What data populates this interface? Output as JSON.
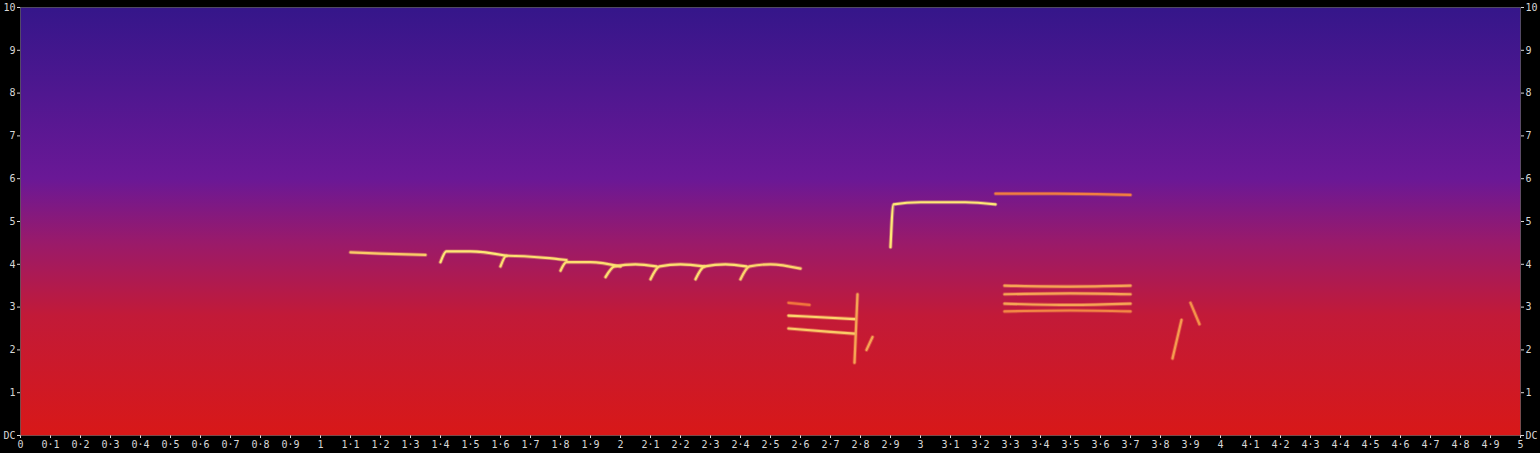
{
  "chart_data": {
    "type": "spectrogram",
    "xlim": [
      0,
      5
    ],
    "xticks": [
      0,
      {
        "value": 0.1,
        "label": "0·1"
      },
      {
        "value": 0.2,
        "label": "0·2"
      },
      {
        "value": 0.3,
        "label": "0·3"
      },
      {
        "value": 0.4,
        "label": "0·4"
      },
      {
        "value": 0.5,
        "label": "0·5"
      },
      {
        "value": 0.6,
        "label": "0·6"
      },
      {
        "value": 0.7,
        "label": "0·7"
      },
      {
        "value": 0.8,
        "label": "0·8"
      },
      {
        "value": 0.9,
        "label": "0·9"
      },
      1,
      {
        "value": 1.1,
        "label": "1·1"
      },
      {
        "value": 1.2,
        "label": "1·2"
      },
      {
        "value": 1.3,
        "label": "1·3"
      },
      {
        "value": 1.4,
        "label": "1·4"
      },
      {
        "value": 1.5,
        "label": "1·5"
      },
      {
        "value": 1.6,
        "label": "1·6"
      },
      {
        "value": 1.7,
        "label": "1·7"
      },
      {
        "value": 1.8,
        "label": "1·8"
      },
      {
        "value": 1.9,
        "label": "1·9"
      },
      2,
      {
        "value": 2.1,
        "label": "2·1"
      },
      {
        "value": 2.2,
        "label": "2·2"
      },
      {
        "value": 2.3,
        "label": "2·3"
      },
      {
        "value": 2.4,
        "label": "2·4"
      },
      {
        "value": 2.5,
        "label": "2·5"
      },
      {
        "value": 2.6,
        "label": "2·6"
      },
      {
        "value": 2.7,
        "label": "2·7"
      },
      {
        "value": 2.8,
        "label": "2·8"
      },
      {
        "value": 2.9,
        "label": "2·9"
      },
      3,
      {
        "value": 3.1,
        "label": "3·1"
      },
      {
        "value": 3.2,
        "label": "3·2"
      },
      {
        "value": 3.3,
        "label": "3·3"
      },
      {
        "value": 3.4,
        "label": "3·4"
      },
      {
        "value": 3.5,
        "label": "3·5"
      },
      {
        "value": 3.6,
        "label": "3·6"
      },
      {
        "value": 3.7,
        "label": "3·7"
      },
      {
        "value": 3.8,
        "label": "3·8"
      },
      {
        "value": 3.9,
        "label": "3·9"
      },
      4,
      {
        "value": 4.1,
        "label": "4·1"
      },
      {
        "value": 4.2,
        "label": "4·2"
      },
      {
        "value": 4.3,
        "label": "4·3"
      },
      {
        "value": 4.4,
        "label": "4·4"
      },
      {
        "value": 4.5,
        "label": "4·5"
      },
      {
        "value": 4.6,
        "label": "4·6"
      },
      {
        "value": 4.7,
        "label": "4·7"
      },
      {
        "value": 4.8,
        "label": "4·8"
      },
      {
        "value": 4.9,
        "label": "4·9"
      },
      5
    ],
    "ylim": [
      0,
      10
    ],
    "yticks": [
      {
        "value": 0,
        "label": "DC"
      },
      1,
      2,
      3,
      4,
      5,
      6,
      7,
      8,
      9,
      10
    ],
    "traces": [
      {
        "points": [
          [
            1.1,
            4.28
          ],
          [
            1.2,
            4.25
          ],
          [
            1.35,
            4.22
          ]
        ],
        "intensity": 0.8
      },
      {
        "points": [
          [
            1.4,
            4.05
          ],
          [
            1.42,
            4.3
          ],
          [
            1.5,
            4.3
          ],
          [
            1.62,
            4.2
          ]
        ],
        "intensity": 0.95
      },
      {
        "points": [
          [
            1.6,
            3.95
          ],
          [
            1.62,
            4.2
          ],
          [
            1.75,
            4.15
          ],
          [
            1.82,
            4.1
          ]
        ],
        "intensity": 0.9
      },
      {
        "points": [
          [
            1.8,
            3.85
          ],
          [
            1.82,
            4.05
          ],
          [
            1.9,
            4.05
          ],
          [
            2.0,
            3.95
          ]
        ],
        "intensity": 0.9
      },
      {
        "points": [
          [
            1.95,
            3.7
          ],
          [
            1.98,
            3.95
          ],
          [
            2.05,
            4.0
          ],
          [
            2.12,
            3.95
          ]
        ],
        "intensity": 0.9
      },
      {
        "points": [
          [
            2.1,
            3.65
          ],
          [
            2.13,
            3.95
          ],
          [
            2.2,
            4.0
          ],
          [
            2.28,
            3.95
          ]
        ],
        "intensity": 0.9
      },
      {
        "points": [
          [
            2.25,
            3.65
          ],
          [
            2.28,
            3.95
          ],
          [
            2.35,
            4.0
          ],
          [
            2.42,
            3.95
          ]
        ],
        "intensity": 0.9
      },
      {
        "points": [
          [
            2.4,
            3.65
          ],
          [
            2.43,
            3.95
          ],
          [
            2.5,
            4.0
          ],
          [
            2.6,
            3.9
          ]
        ],
        "intensity": 0.85
      },
      {
        "points": [
          [
            2.56,
            3.1
          ],
          [
            2.63,
            3.05
          ]
        ],
        "intensity": 0.35
      },
      {
        "points": [
          [
            2.56,
            2.8
          ],
          [
            2.62,
            2.78
          ],
          [
            2.78,
            2.72
          ]
        ],
        "intensity": 0.85
      },
      {
        "points": [
          [
            2.56,
            2.5
          ],
          [
            2.7,
            2.42
          ],
          [
            2.78,
            2.38
          ]
        ],
        "intensity": 0.8
      },
      {
        "points": [
          [
            2.78,
            1.7
          ],
          [
            2.79,
            3.3
          ]
        ],
        "intensity": 0.6
      },
      {
        "points": [
          [
            2.82,
            2.0
          ],
          [
            2.84,
            2.3
          ]
        ],
        "intensity": 0.6
      },
      {
        "points": [
          [
            2.9,
            4.4
          ],
          [
            2.91,
            5.4
          ],
          [
            3.0,
            5.45
          ],
          [
            3.15,
            5.45
          ],
          [
            3.25,
            5.4
          ]
        ],
        "intensity": 0.95
      },
      {
        "points": [
          [
            3.25,
            5.65
          ],
          [
            3.45,
            5.65
          ],
          [
            3.7,
            5.62
          ]
        ],
        "intensity": 0.4
      },
      {
        "points": [
          [
            3.28,
            3.5
          ],
          [
            3.5,
            3.48
          ],
          [
            3.7,
            3.5
          ]
        ],
        "intensity": 0.6
      },
      {
        "points": [
          [
            3.28,
            3.3
          ],
          [
            3.5,
            3.32
          ],
          [
            3.7,
            3.3
          ]
        ],
        "intensity": 0.6
      },
      {
        "points": [
          [
            3.28,
            3.08
          ],
          [
            3.5,
            3.05
          ],
          [
            3.7,
            3.08
          ]
        ],
        "intensity": 0.6
      },
      {
        "points": [
          [
            3.28,
            2.9
          ],
          [
            3.5,
            2.92
          ],
          [
            3.7,
            2.9
          ]
        ],
        "intensity": 0.45
      },
      {
        "points": [
          [
            3.84,
            1.8
          ],
          [
            3.87,
            2.7
          ]
        ],
        "intensity": 0.55
      },
      {
        "points": [
          [
            3.9,
            3.1
          ],
          [
            3.93,
            2.6
          ]
        ],
        "intensity": 0.5
      }
    ]
  }
}
